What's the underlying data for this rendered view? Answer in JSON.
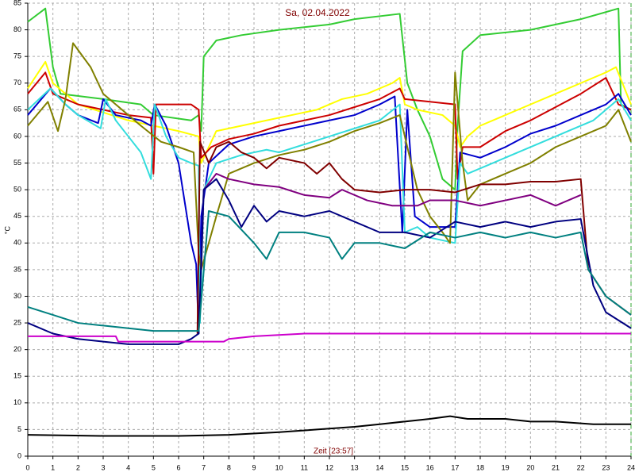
{
  "chart_data": {
    "type": "line",
    "title": "Sa, 02.04.2022",
    "x_label": "Zeit [23:57]",
    "y_label": "°C",
    "xlim": [
      0,
      24
    ],
    "ylim": [
      0,
      85
    ],
    "xticks": [
      0,
      1,
      2,
      3,
      4,
      5,
      6,
      7,
      8,
      9,
      10,
      11,
      12,
      13,
      14,
      15,
      16,
      17,
      18,
      19,
      20,
      21,
      22,
      23,
      24
    ],
    "yticks": [
      0,
      5,
      10,
      15,
      20,
      25,
      30,
      35,
      40,
      45,
      50,
      55,
      60,
      65,
      70,
      75,
      80,
      85
    ],
    "grid": true,
    "series": [
      {
        "color": "#33cc33",
        "x": [
          0,
          0.7,
          1,
          1.3,
          3,
          4.5,
          5,
          6.5,
          6.8,
          6.9,
          7,
          7.5,
          8.5,
          10,
          12,
          13,
          14.8,
          15.1,
          15.5,
          16,
          16.5,
          17,
          17.1,
          17.3,
          18,
          20,
          22,
          23.5,
          23.6,
          24
        ],
        "values": [
          81.5,
          84,
          73,
          68,
          67,
          66,
          64,
          63,
          64,
          61,
          75,
          78,
          79,
          80,
          81,
          82,
          83,
          70,
          65,
          60,
          52,
          50,
          62,
          76,
          79,
          80,
          82,
          84,
          66,
          65
        ]
      },
      {
        "color": "#ffff00",
        "x": [
          0,
          0.7,
          1,
          2,
          3,
          4,
          5,
          6,
          6.8,
          6.9,
          7.2,
          7.5,
          8.5,
          9.5,
          10.5,
          11.5,
          12.5,
          13.5,
          14.5,
          14.8,
          15,
          15.5,
          16.5,
          17,
          17.2,
          17.5,
          18,
          19,
          20,
          21,
          22,
          23,
          23.4,
          24
        ],
        "values": [
          69,
          74,
          70,
          66,
          64.5,
          63,
          62,
          61,
          60,
          55,
          58,
          61,
          62,
          63,
          64,
          65,
          67,
          68,
          70,
          71,
          66,
          65,
          64,
          62,
          58,
          60,
          62,
          64,
          66,
          68,
          70,
          72,
          73,
          66
        ]
      },
      {
        "color": "#cc0000",
        "x": [
          0,
          0.7,
          1,
          2,
          3,
          4,
          4.9,
          5,
          5.1,
          6.5,
          6.8,
          6.9,
          7.3,
          8,
          9,
          10,
          11,
          12,
          13,
          14,
          14.8,
          15,
          16,
          17,
          17.1,
          17.3,
          18,
          19,
          20,
          21,
          22,
          23,
          23.5,
          24
        ],
        "values": [
          68,
          72,
          68,
          66,
          65,
          64,
          63.5,
          53,
          66,
          66,
          65,
          56,
          58,
          59.5,
          60.5,
          62,
          63,
          64,
          65.5,
          67,
          69,
          67,
          66.5,
          66,
          52,
          58,
          58,
          61,
          63,
          65.5,
          68,
          71,
          66,
          65
        ]
      },
      {
        "color": "#0000cc",
        "x": [
          0,
          0.9,
          1.5,
          2,
          2.8,
          3,
          3.5,
          4.5,
          4.9,
          5.05,
          5.5,
          6,
          6.5,
          6.7,
          6.8,
          6.9,
          7.2,
          8,
          9,
          10,
          11,
          12,
          13,
          14,
          14.6,
          14.9,
          15.1,
          15.4,
          16,
          17,
          17.2,
          18,
          19,
          20,
          21,
          22,
          23,
          23.5,
          24
        ],
        "values": [
          64,
          69,
          66,
          64,
          62.5,
          67,
          64,
          63,
          62,
          66,
          62,
          55,
          40,
          36,
          23,
          45,
          55,
          58.5,
          60,
          61,
          62,
          63,
          64,
          66,
          67.5,
          42,
          65,
          45,
          43,
          43,
          57,
          56,
          58,
          60.5,
          62,
          64,
          66,
          68,
          64
        ]
      },
      {
        "color": "#33dddd",
        "x": [
          0,
          0.9,
          1.5,
          2,
          2.9,
          3.1,
          3.5,
          4,
          4.5,
          4.9,
          5.05,
          5.5,
          6,
          6.5,
          6.8,
          6.85,
          7,
          7.5,
          8.5,
          9.5,
          10,
          11,
          12,
          13,
          14,
          14.8,
          15,
          15.5,
          16,
          17,
          17.2,
          17.5,
          18.5,
          19.5,
          20.5,
          21.5,
          22.5,
          23,
          23.5,
          24
        ],
        "values": [
          65,
          69,
          66,
          64,
          61.5,
          67,
          63,
          60,
          57,
          52,
          66,
          60,
          56,
          55,
          54.5,
          25,
          50,
          55,
          56.5,
          57.5,
          57,
          58.5,
          60,
          61.5,
          63,
          66,
          42,
          43,
          41,
          40,
          55,
          53,
          55,
          57,
          59,
          61,
          63,
          65,
          67,
          63
        ]
      },
      {
        "color": "#808000",
        "x": [
          0,
          0.8,
          1.2,
          1.5,
          1.8,
          2.5,
          3,
          3.5,
          4,
          4.5,
          5.3,
          6,
          6.6,
          6.8,
          6.9,
          7.5,
          8,
          9,
          10,
          11,
          12,
          13,
          14,
          14.8,
          15,
          15.5,
          16,
          16.5,
          16.8,
          17,
          17.3,
          17.5,
          18,
          19,
          20,
          21,
          22,
          23,
          23.5,
          24
        ],
        "values": [
          62,
          66.5,
          61,
          67,
          77.5,
          73,
          68,
          66,
          64,
          62,
          59,
          58,
          57,
          38,
          35,
          45,
          53,
          55,
          56.5,
          57.5,
          59,
          61,
          62.5,
          64,
          60,
          50,
          45,
          42,
          40,
          72,
          55,
          48,
          51,
          53,
          55,
          58,
          60,
          62,
          65,
          59
        ]
      },
      {
        "color": "#800000",
        "x": [
          6.75,
          6.85,
          7.2,
          7.5,
          8,
          8.5,
          9,
          9.5,
          10,
          11,
          11.5,
          12,
          12.5,
          13,
          14,
          15,
          16,
          17,
          18,
          19,
          20,
          21,
          22,
          22.3,
          23,
          24
        ],
        "values": [
          23,
          59,
          55,
          58,
          59,
          57,
          56,
          54,
          56,
          55,
          53,
          55,
          52,
          50,
          49.5,
          50,
          50,
          49.5,
          51,
          51,
          51.5,
          51.5,
          52,
          35,
          30,
          26.5
        ]
      },
      {
        "color": "#800080",
        "x": [
          6.9,
          7,
          7.5,
          8,
          9,
          10,
          11,
          12,
          12.5,
          13.5,
          14.5,
          15.5,
          16,
          17,
          18,
          19,
          20,
          21,
          22
        ],
        "values": [
          35,
          50,
          53,
          52,
          51,
          50.5,
          49,
          48.5,
          50,
          48,
          47,
          47,
          48,
          48,
          47,
          48,
          49,
          47,
          49
        ]
      },
      {
        "color": "#000080",
        "x": [
          0,
          1,
          2,
          3,
          4,
          5,
          6,
          6.5,
          6.8,
          7,
          7.5,
          8,
          8.5,
          9,
          9.5,
          10,
          11,
          12,
          13,
          14,
          15,
          16,
          17,
          18,
          19,
          20,
          21,
          22,
          22.5,
          23,
          24
        ],
        "values": [
          25,
          23,
          22,
          21.5,
          21,
          21,
          21,
          22,
          23,
          50,
          52,
          48,
          43,
          47,
          44,
          46,
          45,
          46,
          44,
          42,
          42,
          41,
          44,
          43,
          44,
          43,
          44,
          44.5,
          32,
          27,
          24
        ]
      },
      {
        "color": "#008080",
        "x": [
          0,
          1,
          2,
          3,
          4,
          5,
          6,
          6.8,
          7.2,
          8,
          9,
          9.5,
          10,
          11,
          12,
          12.5,
          13,
          14,
          15,
          16,
          17,
          18,
          19,
          20,
          21,
          22,
          22.3,
          23,
          24
        ],
        "values": [
          28,
          26.5,
          25,
          24.5,
          24,
          23.5,
          23.5,
          23.5,
          46,
          45,
          40,
          37,
          42,
          42,
          41,
          37,
          40,
          40,
          39,
          42,
          41,
          42,
          41,
          42,
          41,
          42,
          35,
          30,
          26.5
        ]
      },
      {
        "color": "#cc00cc",
        "x": [
          0,
          3.5,
          3.6,
          7.8,
          8,
          9,
          11,
          24
        ],
        "values": [
          22.5,
          22.5,
          21.5,
          21.5,
          22,
          22.5,
          23,
          23
        ]
      },
      {
        "color": "#000000",
        "x": [
          0,
          3,
          6,
          8,
          10,
          11.5,
          13,
          14,
          15,
          16,
          16.8,
          17.5,
          19,
          20,
          21,
          22.5,
          24
        ],
        "values": [
          4,
          3.8,
          3.8,
          4,
          4.5,
          5,
          5.5,
          6,
          6.5,
          7,
          7.5,
          7,
          7,
          6.5,
          6.5,
          6,
          6
        ]
      }
    ]
  }
}
